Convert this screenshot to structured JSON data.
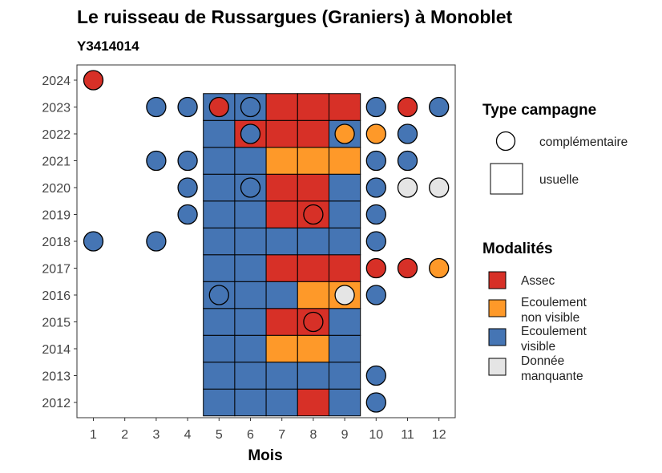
{
  "colors": {
    "Assec": "#d73027",
    "Ecoulement non visible": "#fe9929",
    "Ecoulement visible": "#4575b4",
    "Donnée manquante": "#e5e5e5"
  },
  "chart_data": {
    "type": "heatmap",
    "title": "Le ruisseau de Russargues (Graniers) à Monoblet",
    "subtitle": "Y3414014",
    "xlabel": "Mois",
    "ylabel": "",
    "x_ticks": [
      "1",
      "2",
      "3",
      "4",
      "5",
      "6",
      "7",
      "8",
      "9",
      "10",
      "11",
      "12"
    ],
    "y_ticks": [
      "2012",
      "2013",
      "2014",
      "2015",
      "2016",
      "2017",
      "2018",
      "2019",
      "2020",
      "2021",
      "2022",
      "2023",
      "2024"
    ],
    "grid": false,
    "legend_position": "right",
    "legend": {
      "shape_title": "Type campagne",
      "shape_items": [
        {
          "label": "complémentaire",
          "shape": "circle"
        },
        {
          "label": "usuelle",
          "shape": "square"
        }
      ],
      "fill_title": "Modalités",
      "fill_items": [
        {
          "label_lines": [
            "Assec"
          ],
          "key": "Assec"
        },
        {
          "label_lines": [
            "Ecoulement",
            "non visible"
          ],
          "key": "Ecoulement non visible"
        },
        {
          "label_lines": [
            "Ecoulement",
            "visible"
          ],
          "key": "Ecoulement visible"
        },
        {
          "label_lines": [
            "Donnée",
            "manquante"
          ],
          "key": "Donnée manquante"
        }
      ]
    },
    "usuelle": [
      {
        "year": "2012",
        "months": {
          "5": "Ecoulement visible",
          "6": "Ecoulement visible",
          "7": "Ecoulement visible",
          "8": "Assec",
          "9": "Ecoulement visible"
        }
      },
      {
        "year": "2013",
        "months": {
          "5": "Ecoulement visible",
          "6": "Ecoulement visible",
          "7": "Ecoulement visible",
          "8": "Ecoulement visible",
          "9": "Ecoulement visible"
        }
      },
      {
        "year": "2014",
        "months": {
          "5": "Ecoulement visible",
          "6": "Ecoulement visible",
          "7": "Ecoulement non visible",
          "8": "Ecoulement non visible",
          "9": "Ecoulement visible"
        }
      },
      {
        "year": "2015",
        "months": {
          "5": "Ecoulement visible",
          "6": "Ecoulement visible",
          "7": "Assec",
          "8": "Assec",
          "9": "Ecoulement visible"
        }
      },
      {
        "year": "2016",
        "months": {
          "5": "Ecoulement visible",
          "6": "Ecoulement visible",
          "7": "Ecoulement visible",
          "8": "Ecoulement non visible",
          "9": "Ecoulement non visible"
        }
      },
      {
        "year": "2017",
        "months": {
          "5": "Ecoulement visible",
          "6": "Ecoulement visible",
          "7": "Assec",
          "8": "Assec",
          "9": "Assec"
        }
      },
      {
        "year": "2018",
        "months": {
          "5": "Ecoulement visible",
          "6": "Ecoulement visible",
          "7": "Ecoulement visible",
          "8": "Ecoulement visible",
          "9": "Ecoulement visible"
        }
      },
      {
        "year": "2019",
        "months": {
          "5": "Ecoulement visible",
          "6": "Ecoulement visible",
          "7": "Assec",
          "8": "Assec",
          "9": "Ecoulement visible"
        }
      },
      {
        "year": "2020",
        "months": {
          "5": "Ecoulement visible",
          "6": "Ecoulement visible",
          "7": "Assec",
          "8": "Assec",
          "9": "Ecoulement visible"
        }
      },
      {
        "year": "2021",
        "months": {
          "5": "Ecoulement visible",
          "6": "Ecoulement visible",
          "7": "Ecoulement non visible",
          "8": "Ecoulement non visible",
          "9": "Ecoulement non visible"
        }
      },
      {
        "year": "2022",
        "months": {
          "5": "Ecoulement visible",
          "6": "Assec",
          "7": "Assec",
          "8": "Assec",
          "9": "Ecoulement visible"
        }
      },
      {
        "year": "2023",
        "months": {
          "5": "Ecoulement visible",
          "6": "Ecoulement visible",
          "7": "Assec",
          "8": "Assec",
          "9": "Assec"
        }
      }
    ],
    "complementaire": [
      {
        "year": "2024",
        "month": 1,
        "value": "Assec"
      },
      {
        "year": "2023",
        "month": 3,
        "value": "Ecoulement visible"
      },
      {
        "year": "2023",
        "month": 4,
        "value": "Ecoulement visible"
      },
      {
        "year": "2023",
        "month": 5,
        "value": "Assec"
      },
      {
        "year": "2023",
        "month": 6,
        "value": "Ecoulement visible"
      },
      {
        "year": "2023",
        "month": 10,
        "value": "Ecoulement visible"
      },
      {
        "year": "2023",
        "month": 11,
        "value": "Assec"
      },
      {
        "year": "2023",
        "month": 12,
        "value": "Ecoulement visible"
      },
      {
        "year": "2022",
        "month": 6,
        "value": "Ecoulement visible"
      },
      {
        "year": "2022",
        "month": 9,
        "value": "Ecoulement non visible"
      },
      {
        "year": "2022",
        "month": 10,
        "value": "Ecoulement non visible"
      },
      {
        "year": "2022",
        "month": 11,
        "value": "Ecoulement visible"
      },
      {
        "year": "2021",
        "month": 3,
        "value": "Ecoulement visible"
      },
      {
        "year": "2021",
        "month": 4,
        "value": "Ecoulement visible"
      },
      {
        "year": "2021",
        "month": 10,
        "value": "Ecoulement visible"
      },
      {
        "year": "2021",
        "month": 11,
        "value": "Ecoulement visible"
      },
      {
        "year": "2020",
        "month": 4,
        "value": "Ecoulement visible"
      },
      {
        "year": "2020",
        "month": 6,
        "value": "Ecoulement visible"
      },
      {
        "year": "2020",
        "month": 10,
        "value": "Ecoulement visible"
      },
      {
        "year": "2020",
        "month": 11,
        "value": "Donnée manquante"
      },
      {
        "year": "2020",
        "month": 12,
        "value": "Donnée manquante"
      },
      {
        "year": "2019",
        "month": 4,
        "value": "Ecoulement visible"
      },
      {
        "year": "2019",
        "month": 8,
        "value": "Assec"
      },
      {
        "year": "2019",
        "month": 10,
        "value": "Ecoulement visible"
      },
      {
        "year": "2018",
        "month": 1,
        "value": "Ecoulement visible"
      },
      {
        "year": "2018",
        "month": 3,
        "value": "Ecoulement visible"
      },
      {
        "year": "2018",
        "month": 10,
        "value": "Ecoulement visible"
      },
      {
        "year": "2017",
        "month": 10,
        "value": "Assec"
      },
      {
        "year": "2017",
        "month": 11,
        "value": "Assec"
      },
      {
        "year": "2017",
        "month": 12,
        "value": "Ecoulement non visible"
      },
      {
        "year": "2016",
        "month": 5,
        "value": "Ecoulement visible"
      },
      {
        "year": "2016",
        "month": 9,
        "value": "Donnée manquante"
      },
      {
        "year": "2016",
        "month": 10,
        "value": "Ecoulement visible"
      },
      {
        "year": "2015",
        "month": 8,
        "value": "Assec"
      },
      {
        "year": "2013",
        "month": 10,
        "value": "Ecoulement visible"
      },
      {
        "year": "2012",
        "month": 10,
        "value": "Ecoulement visible"
      }
    ]
  }
}
